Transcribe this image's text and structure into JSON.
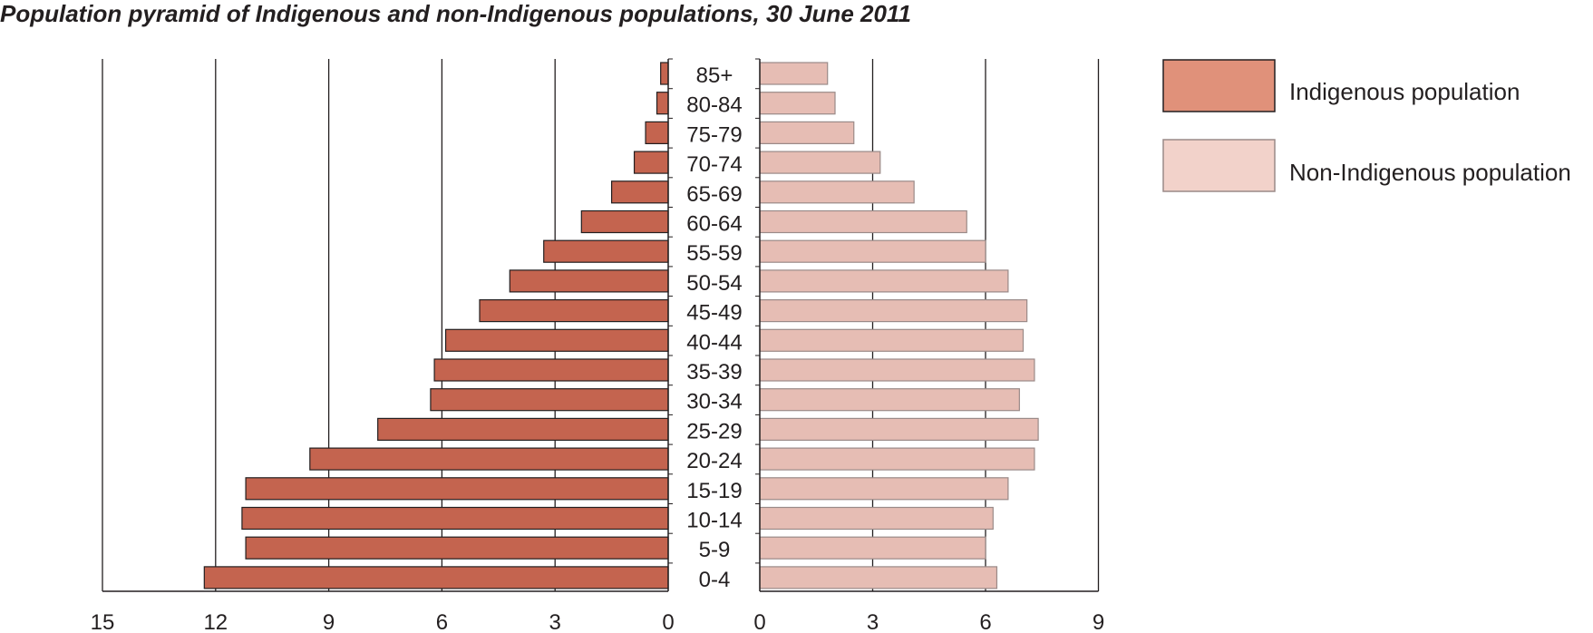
{
  "title": "Population pyramid of Indigenous and non-Indigenous populations, 30 June 2011",
  "colors": {
    "indigenous_fill": "#c4644f",
    "indigenous_legend": "#e0917a",
    "non_indigenous_fill": "#e6bdb4",
    "non_indigenous_legend": "#f2d2ca",
    "non_indigenous_stroke": "#9a8a88",
    "axis": "#231f20"
  },
  "legend": {
    "indigenous": "Indigenous population",
    "non_indigenous": "Non-Indigenous population"
  },
  "chart_data": {
    "type": "bar",
    "orientation": "horizontal-pyramid",
    "title": "Population pyramid of Indigenous and non-Indigenous populations, 30 June 2011",
    "categories": [
      "85+",
      "80-84",
      "75-79",
      "70-74",
      "65-69",
      "60-64",
      "55-59",
      "50-54",
      "45-49",
      "40-44",
      "35-39",
      "30-34",
      "25-29",
      "20-24",
      "15-19",
      "10-14",
      "5-9",
      "0-4"
    ],
    "series": [
      {
        "name": "Indigenous population",
        "side": "left",
        "values": [
          0.2,
          0.3,
          0.6,
          0.9,
          1.5,
          2.3,
          3.3,
          4.2,
          5.0,
          5.9,
          6.2,
          6.3,
          7.7,
          9.5,
          11.2,
          11.3,
          11.2,
          12.3
        ]
      },
      {
        "name": "Non-Indigenous population",
        "side": "right",
        "values": [
          1.8,
          2.0,
          2.5,
          3.2,
          4.1,
          5.5,
          6.0,
          6.6,
          7.1,
          7.0,
          7.3,
          6.9,
          7.4,
          7.3,
          6.6,
          6.2,
          6.0,
          6.3
        ]
      }
    ],
    "left_axis": {
      "ticks": [
        "15",
        "12",
        "9",
        "6",
        "3",
        "0"
      ],
      "range": [
        0,
        15
      ]
    },
    "right_axis": {
      "ticks": [
        "0",
        "3",
        "6",
        "9"
      ],
      "range": [
        0,
        9
      ]
    },
    "grid": true,
    "legend_position": "right"
  }
}
